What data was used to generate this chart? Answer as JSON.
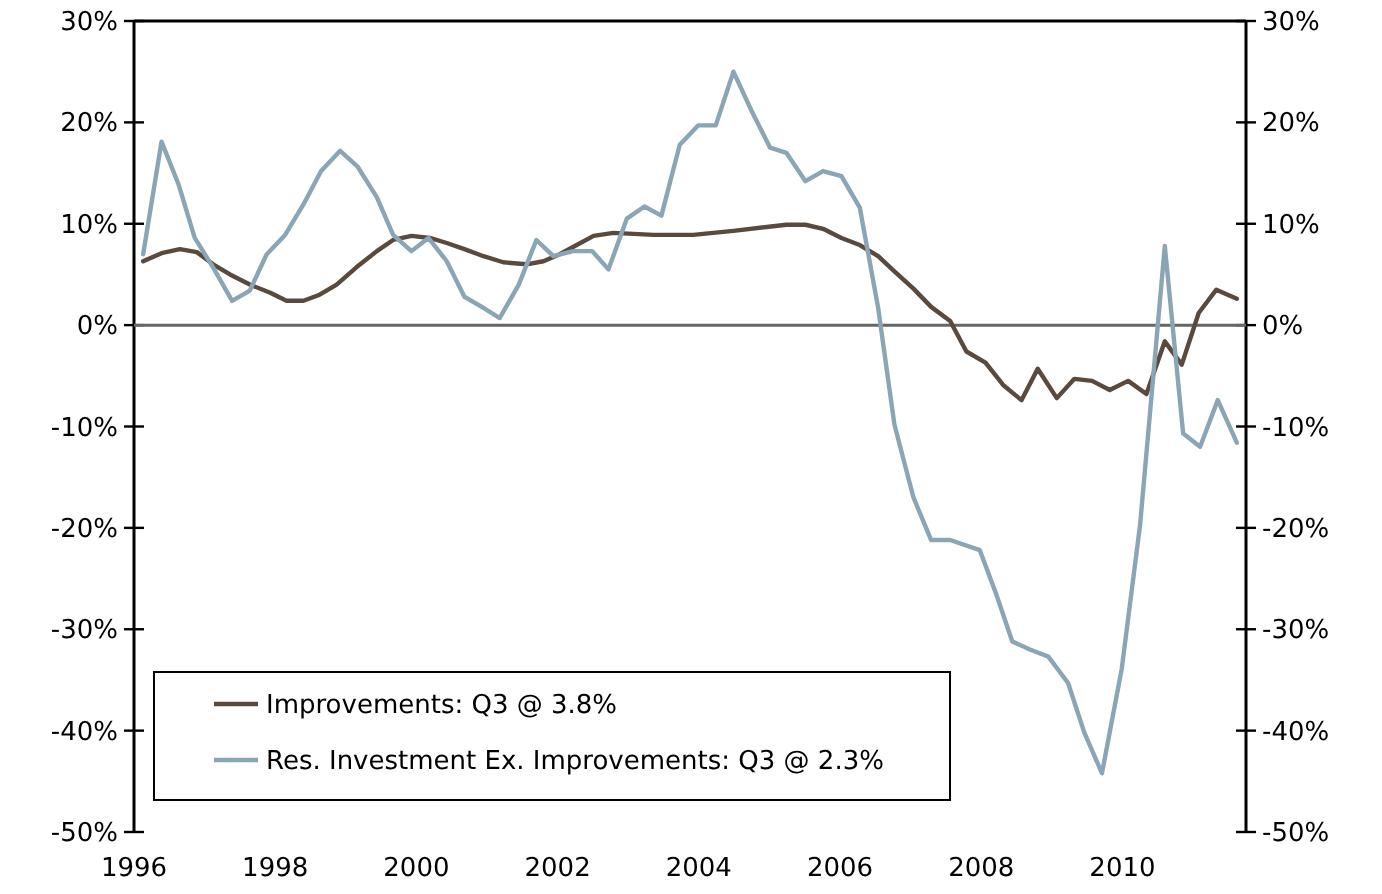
{
  "chart_data": {
    "type": "line",
    "xlim": [
      1996,
      2011.75
    ],
    "xticks": [
      1996,
      1998,
      2000,
      2002,
      2004,
      2006,
      2008,
      2010
    ],
    "ylim": [
      -50,
      30
    ],
    "yticks": [
      {
        "value": -50,
        "label": "-50%"
      },
      {
        "value": -40,
        "label": "-40%"
      },
      {
        "value": -30,
        "label": "-30%"
      },
      {
        "value": -20,
        "label": "-20%"
      },
      {
        "value": -10,
        "label": "-10%"
      },
      {
        "value": 0,
        "label": "0%"
      },
      {
        "value": 10,
        "label": "10%"
      },
      {
        "value": 20,
        "label": "20%"
      },
      {
        "value": 30,
        "label": "30%"
      }
    ],
    "y2lim": [
      -50,
      30
    ],
    "y2ticks": [
      {
        "value": -50,
        "label": "-50%"
      },
      {
        "value": -40,
        "label": "-40%"
      },
      {
        "value": -30,
        "label": "-30%"
      },
      {
        "value": -20,
        "label": "-20%"
      },
      {
        "value": -10,
        "label": "-10%"
      },
      {
        "value": 0,
        "label": "0%"
      },
      {
        "value": 10,
        "label": "10%"
      },
      {
        "value": 20,
        "label": "20%"
      },
      {
        "value": 30,
        "label": "30%"
      }
    ],
    "grid": false,
    "legend": "bottom left",
    "marker": "none",
    "line_style": "solid",
    "ref_lines": [
      {
        "axis": "y",
        "value": 0,
        "color": "#666666"
      }
    ],
    "series": [
      {
        "name": "Improvements: Q3 @ 3.8%",
        "color": "#5a4a3e",
        "x": [
          1996.13,
          1996.39,
          1996.65,
          1996.89,
          1997.12,
          1997.36,
          1997.64,
          1997.93,
          1998.16,
          1998.4,
          1998.63,
          1998.87,
          1999.15,
          1999.44,
          1999.67,
          1999.93,
          2000.19,
          2000.43,
          2000.68,
          2000.95,
          2001.23,
          2001.56,
          2001.8,
          2002.03,
          2002.27,
          2002.51,
          2002.79,
          2003.36,
          2003.92,
          2004.49,
          2005.24,
          2005.51,
          2005.76,
          2006.02,
          2006.28,
          2006.54,
          2006.77,
          2007.04,
          2007.29,
          2007.56,
          2007.79,
          2008.06,
          2008.31,
          2008.57,
          2008.8,
          2009.07,
          2009.32,
          2009.57,
          2009.82,
          2010.08,
          2010.34,
          2010.6,
          2010.84,
          2011.08,
          2011.33,
          2011.62
        ],
        "values": [
          6.3,
          7.1,
          7.5,
          7.2,
          6.0,
          5.0,
          4.0,
          3.2,
          2.4,
          2.4,
          3.0,
          4.0,
          5.7,
          7.3,
          8.4,
          8.8,
          8.6,
          8.1,
          7.5,
          6.8,
          6.2,
          6.0,
          6.3,
          7.0,
          7.9,
          8.8,
          9.1,
          8.9,
          8.9,
          9.3,
          9.9,
          9.9,
          9.5,
          8.6,
          7.9,
          6.8,
          5.3,
          3.6,
          1.8,
          0.4,
          -2.6,
          -3.7,
          -5.9,
          -7.4,
          -4.3,
          -7.2,
          -5.3,
          -5.5,
          -6.4,
          -5.5,
          -6.8,
          -1.6,
          -3.9,
          1.2,
          3.5,
          2.6
        ]
      },
      {
        "name": "Res. Investment Ex. Improvements: Q3 @ 2.3%",
        "color": "#8aa5b5",
        "x": [
          1996.13,
          1996.39,
          1996.63,
          1996.86,
          1997.12,
          1997.39,
          1997.64,
          1997.88,
          1998.14,
          1998.4,
          1998.65,
          1998.92,
          1999.17,
          1999.44,
          1999.67,
          1999.93,
          2000.17,
          2000.43,
          2000.68,
          2000.95,
          2001.18,
          2001.45,
          2001.7,
          2001.94,
          2002.22,
          2002.49,
          2002.72,
          2002.98,
          2003.23,
          2003.47,
          2003.73,
          2003.99,
          2004.24,
          2004.49,
          2004.75,
          2005.01,
          2005.24,
          2005.51,
          2005.76,
          2006.02,
          2006.28,
          2006.54,
          2006.77,
          2007.04,
          2007.29,
          2007.56,
          2007.98,
          2008.21,
          2008.44,
          2008.69,
          2008.95,
          2009.23,
          2009.46,
          2009.71,
          2009.99,
          2010.25,
          2010.6,
          2010.86,
          2011.1,
          2011.35,
          2011.62
        ],
        "values": [
          7.0,
          18.1,
          13.9,
          8.6,
          5.7,
          2.4,
          3.4,
          7.0,
          8.9,
          11.9,
          15.2,
          17.2,
          15.6,
          12.6,
          8.9,
          7.3,
          8.6,
          6.3,
          2.8,
          1.7,
          0.7,
          4.0,
          8.4,
          6.8,
          7.3,
          7.3,
          5.5,
          10.5,
          11.7,
          10.8,
          17.8,
          19.7,
          19.7,
          25.0,
          21.1,
          17.5,
          17.0,
          14.2,
          15.2,
          14.7,
          11.6,
          1.7,
          -9.8,
          -17.0,
          -21.2,
          -21.2,
          -22.2,
          -26.5,
          -31.2,
          -32.0,
          -32.7,
          -35.3,
          -40.2,
          -44.2,
          -33.9,
          -19.7,
          7.8,
          -10.7,
          -12.0,
          -7.4,
          -11.6
        ]
      }
    ]
  }
}
